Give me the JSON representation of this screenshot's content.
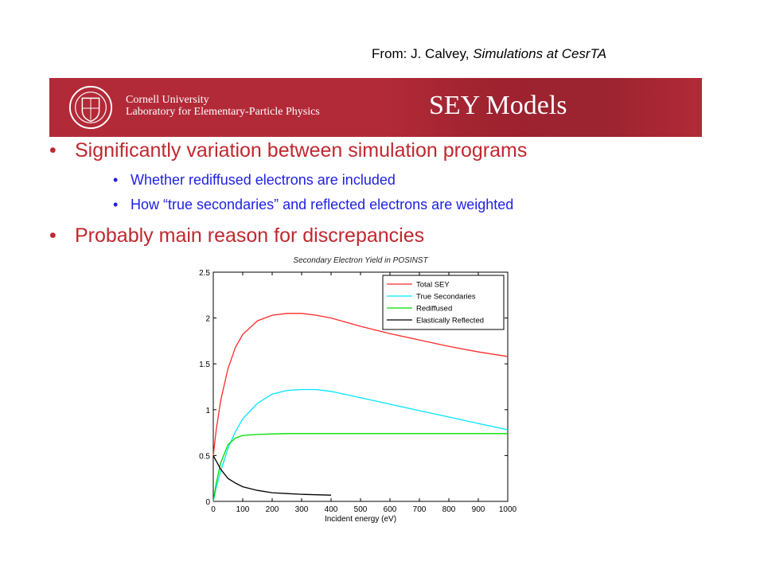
{
  "attribution": {
    "prefix": "From: J. Calvey, ",
    "work": "Simulations at CesrTA"
  },
  "banner": {
    "university": "Cornell University",
    "lab": "Laboratory for Elementary-Particle Physics",
    "title": "SEY Models",
    "background": "#b22a38",
    "seal_icon": "cornell-seal-icon"
  },
  "bullets": {
    "b1": "Significantly variation between simulation programs",
    "b1_sub1": "Whether rediffused electrons are included",
    "b1_sub2": "How “true secondaries” and reflected electrons are weighted",
    "b2": "Probably main reason for discrepancies",
    "bullet_char": "•"
  },
  "colors": {
    "heading": "#c0282f",
    "subtext": "#1f1fe6"
  },
  "chart_data": {
    "type": "line",
    "title": "Secondary Electron Yield in POSINST",
    "xlabel": "Incident energy (eV)",
    "ylabel": "",
    "xlim": [
      0,
      1000
    ],
    "ylim": [
      0,
      2.5
    ],
    "xticks": [
      0,
      100,
      200,
      300,
      400,
      500,
      600,
      700,
      800,
      900,
      1000
    ],
    "yticks": [
      0,
      0.5,
      1,
      1.5,
      2,
      2.5
    ],
    "grid": false,
    "legend_position": "top-right",
    "x": [
      0,
      10,
      25,
      50,
      75,
      100,
      150,
      200,
      250,
      300,
      350,
      400,
      500,
      600,
      700,
      800,
      900,
      1000
    ],
    "series": [
      {
        "name": "Total SEY",
        "color": "#ff2a2a",
        "values": [
          0.5,
          0.78,
          1.1,
          1.45,
          1.68,
          1.82,
          1.97,
          2.03,
          2.05,
          2.05,
          2.03,
          2.0,
          1.91,
          1.83,
          1.76,
          1.69,
          1.63,
          1.58
        ]
      },
      {
        "name": "True Secondaries",
        "color": "#00e5ff",
        "values": [
          0.0,
          0.15,
          0.33,
          0.58,
          0.76,
          0.9,
          1.07,
          1.17,
          1.21,
          1.22,
          1.22,
          1.2,
          1.13,
          1.06,
          0.99,
          0.92,
          0.85,
          0.78
        ]
      },
      {
        "name": "Rediffused",
        "color": "#00dd00",
        "values": [
          0.0,
          0.2,
          0.42,
          0.62,
          0.69,
          0.72,
          0.73,
          0.735,
          0.74,
          0.74,
          0.74,
          0.74,
          0.74,
          0.74,
          0.74,
          0.74,
          0.74,
          0.74
        ]
      },
      {
        "name": "Elastically Reflected",
        "color": "#000000",
        "values": [
          0.5,
          0.44,
          0.35,
          0.25,
          0.2,
          0.16,
          0.12,
          0.095,
          0.085,
          0.077,
          0.072,
          0.068,
          null,
          null,
          null,
          null,
          null,
          null
        ]
      }
    ]
  }
}
